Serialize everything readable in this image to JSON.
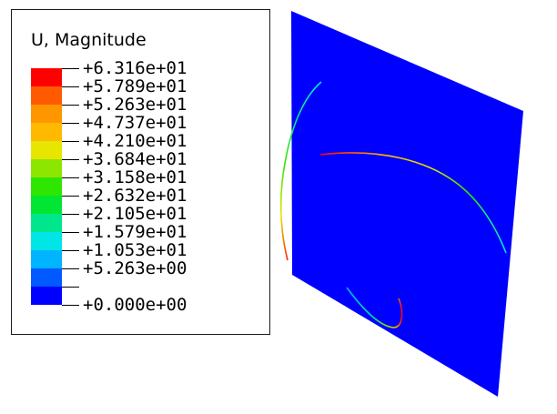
{
  "legend": {
    "title": "U, Magnitude",
    "entries": [
      {
        "label": "+6.316e+01",
        "color": "#ff0000"
      },
      {
        "label": "+5.789e+01",
        "color": "#ff5a00"
      },
      {
        "label": "+5.263e+01",
        "color": "#ff9600"
      },
      {
        "label": "+4.737e+01",
        "color": "#ffb900"
      },
      {
        "label": "+4.210e+01",
        "color": "#e6e600"
      },
      {
        "label": "+3.684e+01",
        "color": "#8ce600"
      },
      {
        "label": "+3.158e+01",
        "color": "#2ee600"
      },
      {
        "label": "+2.632e+01",
        "color": "#00e632"
      },
      {
        "label": "+2.105e+01",
        "color": "#00e68c"
      },
      {
        "label": "+1.579e+01",
        "color": "#00e6e6"
      },
      {
        "label": "+1.053e+01",
        "color": "#00b4ff"
      },
      {
        "label": "+5.263e+00",
        "color": "#005aff"
      },
      {
        "label": "+0.000e+00",
        "color": "#0000ff"
      }
    ]
  },
  "model": {
    "plate_color": "#0000ff"
  }
}
